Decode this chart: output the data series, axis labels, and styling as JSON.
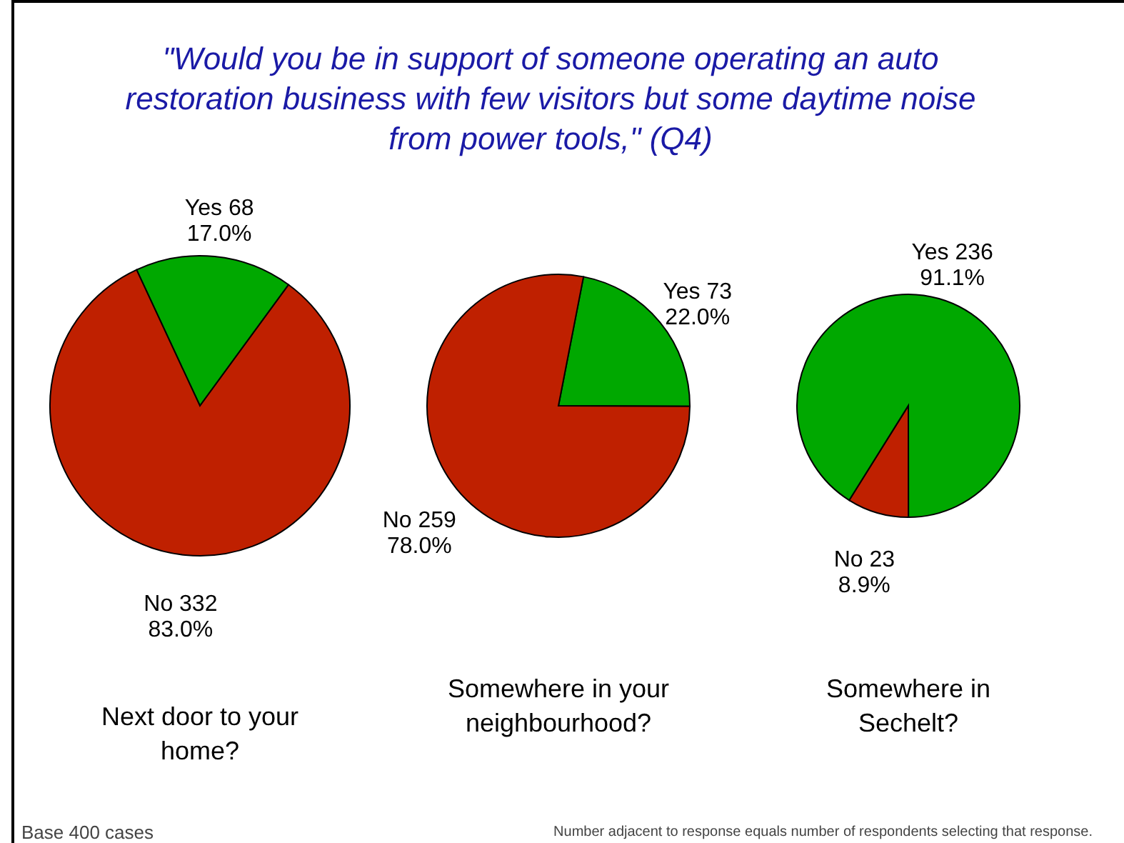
{
  "chart_data": [
    {
      "type": "pie",
      "title": "\"Would you be in support of someone operating an auto restoration business with few visitors but some daytime noise from power tools,\" (Q4)",
      "categories": [
        "Yes  68",
        "No  332"
      ],
      "values": [
        17.0,
        83.0
      ],
      "colors": [
        "#00a800",
        "#bf2000"
      ],
      "value_labels": [
        "17.0%",
        "83.0%"
      ],
      "xlabel": "Next door to your home?",
      "annotations": [
        "Base 400 cases",
        "Number adjacent to response equals number of respondents selecting that response."
      ]
    },
    {
      "type": "pie",
      "categories": [
        "Yes  73",
        "No  259"
      ],
      "values": [
        22.0,
        78.0
      ],
      "colors": [
        "#00a800",
        "#bf2000"
      ],
      "value_labels": [
        "22.0%",
        "78.0%"
      ],
      "xlabel": "Somewhere in your neighbourhood?"
    },
    {
      "type": "pie",
      "categories": [
        "Yes  236",
        "No  23"
      ],
      "values": [
        91.1,
        8.9
      ],
      "colors": [
        "#00a800",
        "#bf2000"
      ],
      "value_labels": [
        "91.1%",
        "8.9%"
      ],
      "xlabel": "Somewhere in Sechelt?"
    }
  ]
}
